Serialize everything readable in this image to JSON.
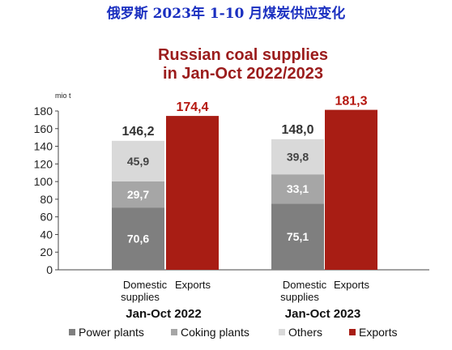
{
  "header": {
    "banner": "俄罗斯 2023年 1-10 月煤炭供应变化"
  },
  "chart_data": {
    "type": "bar",
    "title_lines": [
      "Russian coal supplies",
      "in Jan-Oct 2022/2023"
    ],
    "unit": "mio t",
    "ylim": [
      0,
      180
    ],
    "yticks": [
      0,
      20,
      40,
      60,
      80,
      100,
      120,
      140,
      160,
      180
    ],
    "groups": [
      {
        "label": "Jan-Oct 2022",
        "categories": [
          "Domestic supplies",
          "Exports"
        ],
        "domestic": {
          "power_plants": 70.6,
          "coking_plants": 29.7,
          "others": 45.9,
          "total": 146.2
        },
        "exports": 174.4,
        "value_labels": {
          "power_plants": "70,6",
          "coking_plants": "29,7",
          "others": "45,9",
          "total": "146,2",
          "exports": "174,4"
        }
      },
      {
        "label": "Jan-Oct 2023",
        "categories": [
          "Domestic supplies",
          "Exports"
        ],
        "domestic": {
          "power_plants": 75.1,
          "coking_plants": 33.1,
          "others": 39.8,
          "total": 148.0
        },
        "exports": 181.3,
        "value_labels": {
          "power_plants": "75,1",
          "coking_plants": "33,1",
          "others": "39,8",
          "total": "148,0",
          "exports": "181,3"
        }
      }
    ],
    "category_text": {
      "domestic_line1": "Domestic",
      "domestic_line2": "supplies",
      "exports": "Exports"
    },
    "legend": [
      {
        "key": "power_plants",
        "label": "Power plants",
        "color": "#7f7f7f"
      },
      {
        "key": "coking_plants",
        "label": "Coking plants",
        "color": "#a6a6a6"
      },
      {
        "key": "others",
        "label": "Others",
        "color": "#d9d9d9"
      },
      {
        "key": "exports",
        "label": "Exports",
        "color": "#a81d14"
      }
    ],
    "grid": false,
    "legend_position": "bottom"
  }
}
